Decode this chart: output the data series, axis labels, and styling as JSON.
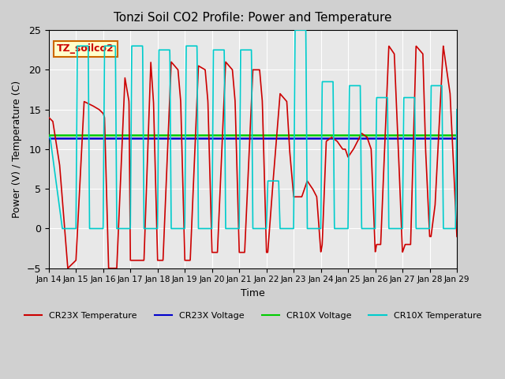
{
  "title": "Tonzi Soil CO2 Profile: Power and Temperature",
  "xlabel": "Time",
  "ylabel": "Power (V) / Temperature (C)",
  "ylim": [
    -5,
    25
  ],
  "xlim": [
    0,
    15
  ],
  "tick_labels": [
    "Jan 14",
    "Jan 15",
    "Jan 16",
    "Jan 17",
    "Jan 18",
    "Jan 19",
    "Jan 20",
    "Jan 21",
    "Jan 22",
    "Jan 23",
    "Jan 24",
    "Jan 25",
    "Jan 26",
    "Jan 27",
    "Jan 28",
    "Jan 29"
  ],
  "cr23x_voltage_value": 11.4,
  "cr10x_voltage_value": 11.75,
  "plot_bg_color": "#e8e8e8",
  "fig_bg_color": "#d0d0d0",
  "cr23x_temp_color": "#cc0000",
  "cr23x_volt_color": "#0000cc",
  "cr10x_volt_color": "#00cc00",
  "cr10x_temp_color": "#00cccc",
  "annotation_text": "TZ_soilco2",
  "annotation_bg": "#ffffcc",
  "annotation_border": "#cc6600",
  "legend_items": [
    "CR23X Temperature",
    "CR23X Voltage",
    "CR10X Voltage",
    "CR10X Temperature"
  ],
  "cr23x_temp_x": [
    0,
    0.15,
    0.4,
    0.7,
    0.85,
    1.0,
    1.3,
    1.6,
    1.85,
    2.0,
    2.05,
    2.2,
    2.5,
    2.8,
    2.95,
    3.0,
    3.2,
    3.5,
    3.75,
    3.85,
    4.0,
    4.05,
    4.2,
    4.5,
    4.75,
    4.85,
    5.0,
    5.05,
    5.2,
    5.5,
    5.75,
    5.85,
    6.0,
    6.05,
    6.2,
    6.5,
    6.75,
    6.85,
    7.0,
    7.05,
    7.2,
    7.5,
    7.75,
    7.85,
    8.0,
    8.05,
    8.2,
    8.5,
    8.75,
    8.85,
    9.0,
    9.1,
    9.3,
    9.5,
    9.7,
    9.85,
    10.0,
    10.05,
    10.2,
    10.4,
    10.6,
    10.8,
    10.9,
    11.0,
    11.1,
    11.2,
    11.5,
    11.7,
    11.85,
    12.0,
    12.05,
    12.2,
    12.5,
    12.7,
    12.85,
    13.0,
    13.1,
    13.3,
    13.5,
    13.75,
    13.85,
    14.0,
    14.05,
    14.2,
    14.5,
    14.75,
    14.85,
    15.0
  ],
  "cr23x_temp_y": [
    14,
    13.5,
    8,
    -5,
    -4.5,
    -4,
    16,
    15.5,
    15,
    14.5,
    14,
    -5,
    -5,
    19,
    16,
    -4,
    -4,
    -4,
    21,
    16,
    -4,
    -4,
    -4,
    21,
    20,
    16,
    -4,
    -4,
    -4,
    20.5,
    20,
    16,
    -3,
    -3,
    -3,
    21,
    20,
    16,
    -3,
    -3,
    -3,
    20,
    20,
    16,
    -3,
    -3,
    4,
    17,
    16,
    10,
    4,
    4,
    4,
    6,
    5,
    4,
    -3,
    -2,
    11,
    11.5,
    11,
    10,
    10,
    9,
    9.5,
    10,
    12,
    11.5,
    10,
    -3,
    -2,
    -2,
    23,
    22,
    10,
    -3,
    -2,
    -2,
    23,
    22,
    10,
    -1,
    -1,
    3,
    23,
    17,
    10,
    -1
  ],
  "cr10x_temp_x": [
    0,
    0.05,
    0.5,
    0.95,
    1.0,
    1.05,
    1.45,
    1.5,
    1.95,
    2.0,
    2.05,
    2.45,
    2.5,
    2.95,
    3.0,
    3.05,
    3.45,
    3.5,
    3.95,
    4.0,
    4.05,
    4.45,
    4.5,
    4.95,
    5.0,
    5.05,
    5.45,
    5.5,
    5.95,
    6.0,
    6.05,
    6.45,
    6.5,
    6.95,
    7.0,
    7.05,
    7.45,
    7.5,
    7.95,
    8.0,
    8.05,
    8.45,
    8.5,
    8.95,
    9.0,
    9.05,
    9.45,
    9.5,
    9.95,
    10.0,
    10.05,
    10.45,
    10.5,
    10.95,
    11.0,
    11.05,
    11.45,
    11.5,
    11.95,
    12.0,
    12.05,
    12.45,
    12.5,
    12.95,
    13.0,
    13.05,
    13.45,
    13.5,
    13.95,
    14.0,
    14.05,
    14.45,
    14.5,
    14.95,
    15.0
  ],
  "cr10x_temp_y": [
    11.5,
    11.5,
    0,
    0,
    0,
    23,
    23,
    0,
    0,
    0,
    23,
    23,
    0,
    0,
    0,
    23,
    23,
    0,
    0,
    0,
    22.5,
    22.5,
    0,
    0,
    0,
    23,
    23,
    0,
    0,
    0,
    22.5,
    22.5,
    0,
    0,
    0,
    22.5,
    22.5,
    0,
    0,
    0,
    6,
    6,
    0,
    0,
    0,
    25,
    25,
    0,
    0,
    0,
    18.5,
    18.5,
    0,
    0,
    0,
    18,
    18,
    0,
    0,
    0,
    16.5,
    16.5,
    0,
    0,
    0,
    16.5,
    16.5,
    0,
    0,
    0,
    18,
    18,
    0,
    0,
    15
  ]
}
